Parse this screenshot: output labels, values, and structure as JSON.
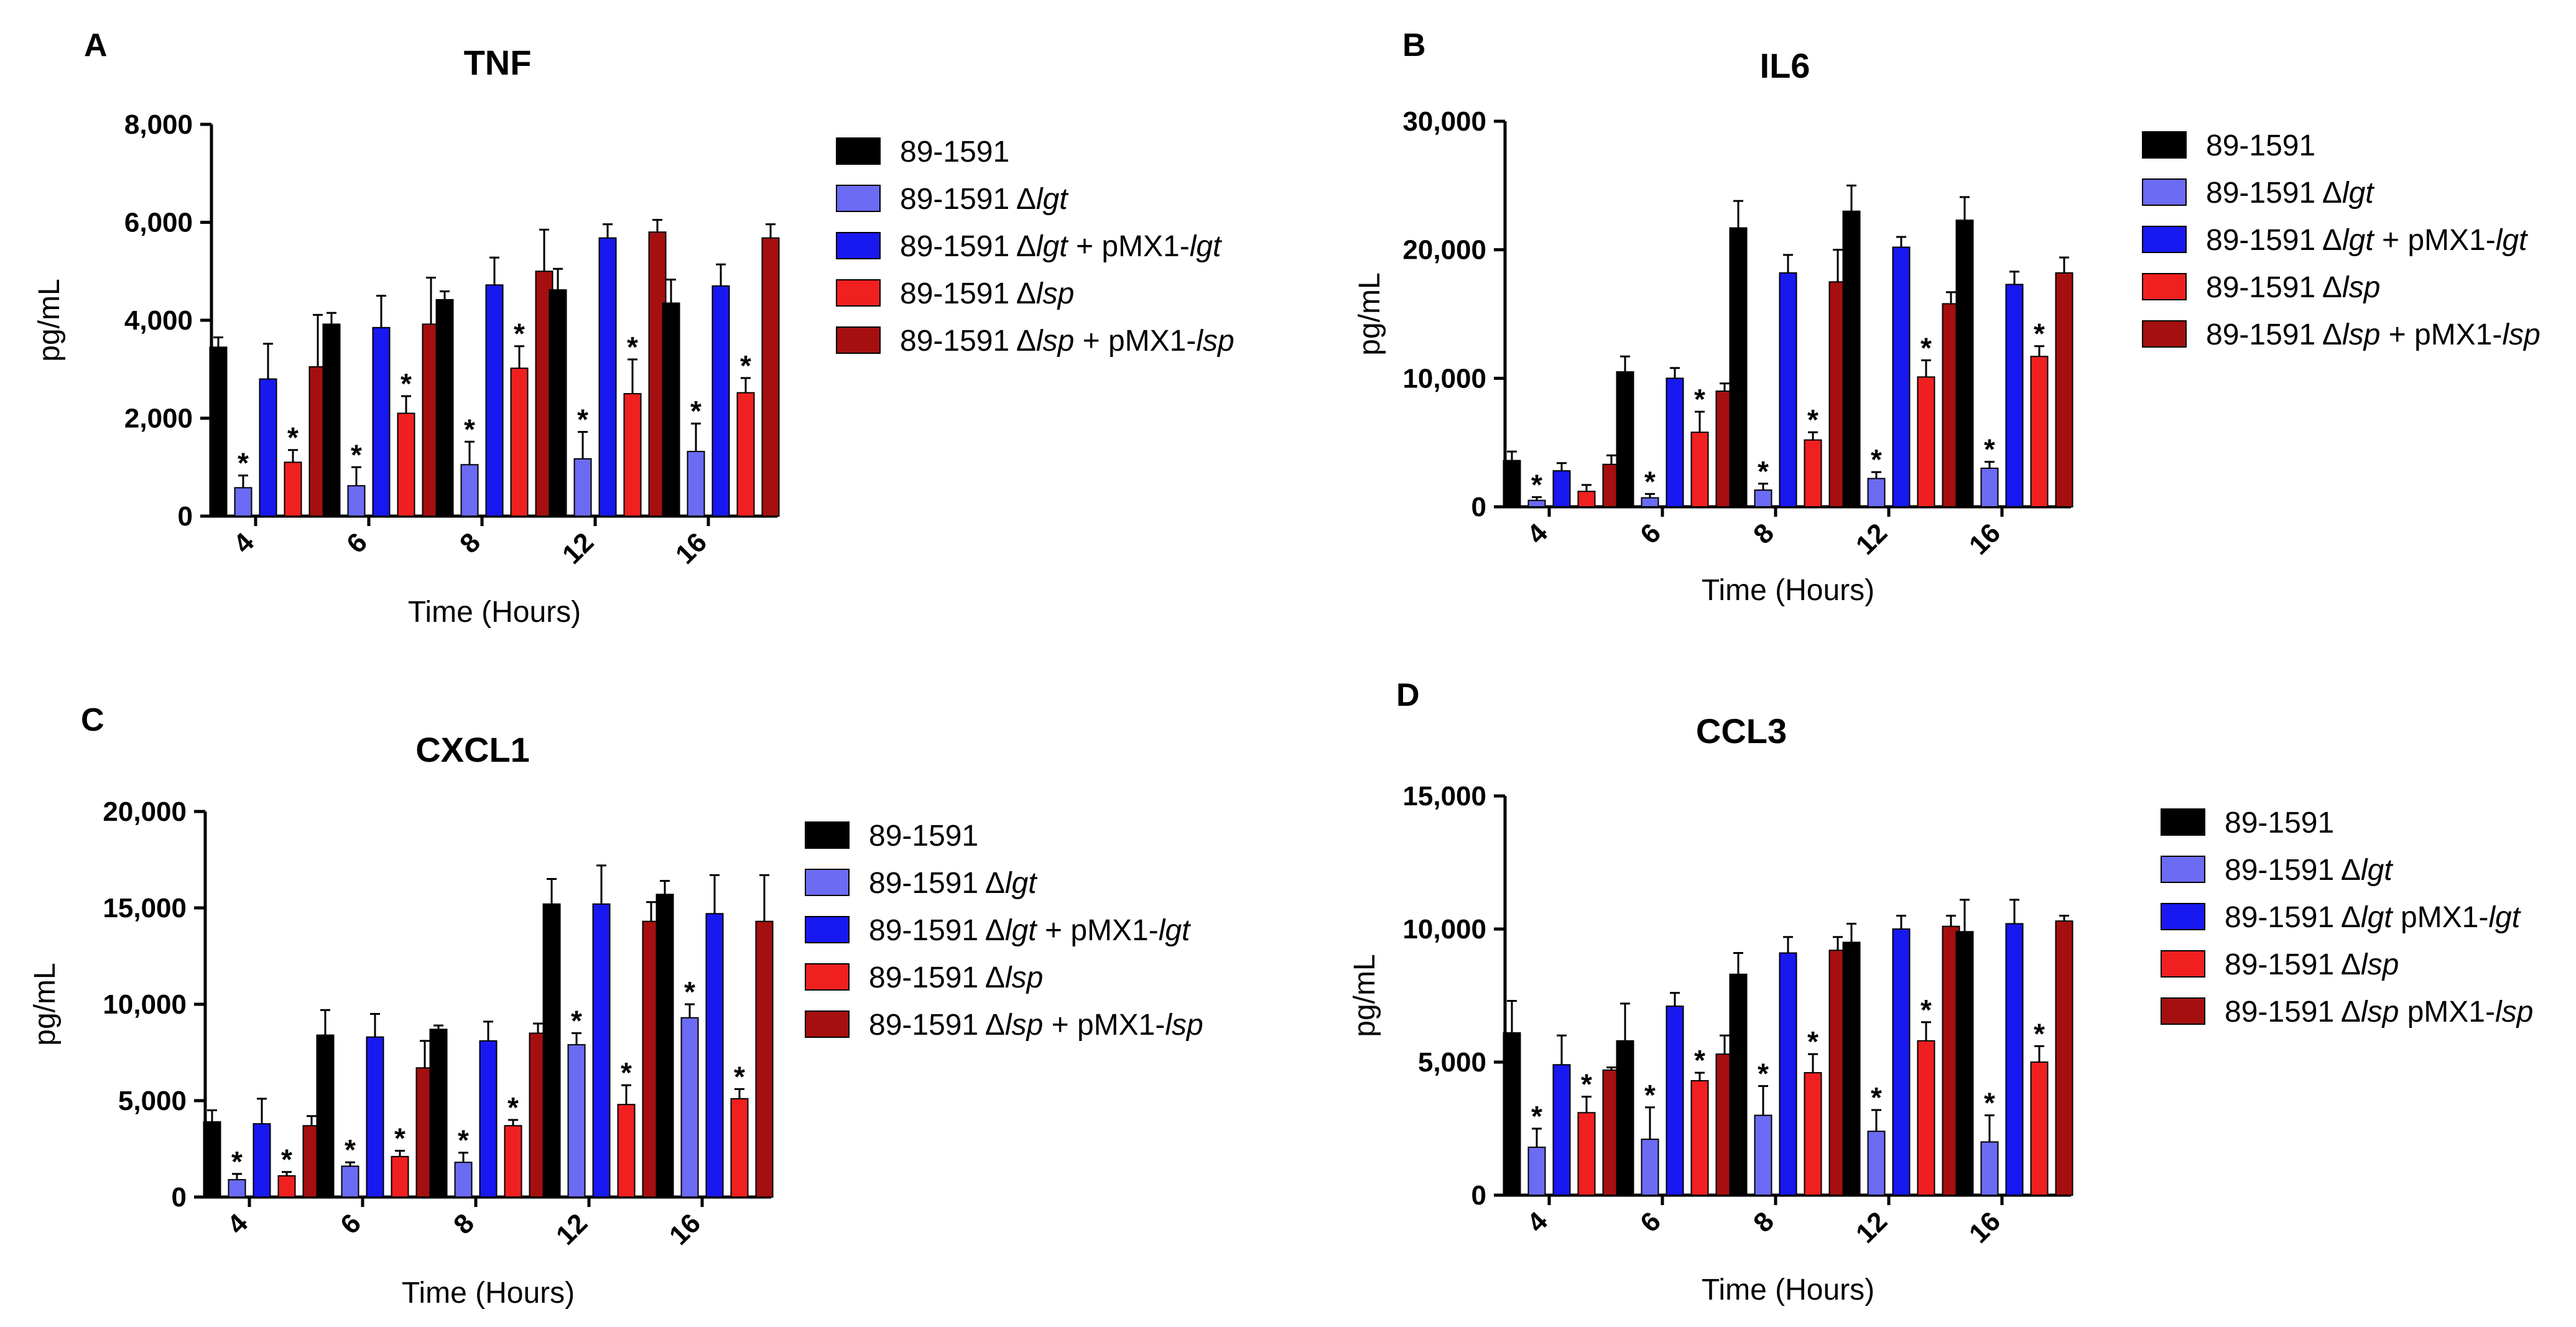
{
  "chart_data": [
    {
      "panel": "A",
      "type": "bar",
      "title": "TNF",
      "xlabel": "Time (Hours)",
      "ylabel": "pg/mL",
      "ylim": [
        0,
        8000
      ],
      "yticks": [
        "0",
        "2,000",
        "4,000",
        "6,000",
        "8,000"
      ],
      "yticks_values": [
        0,
        2000,
        4000,
        6000,
        8000
      ],
      "categories": [
        "4",
        "6",
        "8",
        "12",
        "16"
      ],
      "series": [
        {
          "name": "89-1591",
          "color": "#000000",
          "values": [
            3450,
            3920,
            4420,
            4620,
            4350
          ],
          "errors": [
            200,
            230,
            170,
            430,
            480
          ],
          "stars": [
            false,
            false,
            false,
            false,
            false
          ]
        },
        {
          "name": "89-1591 Δlgt",
          "color": "#6b6bf3",
          "values": [
            580,
            620,
            1050,
            1170,
            1320
          ],
          "errors": [
            250,
            380,
            470,
            550,
            570
          ],
          "stars": [
            true,
            true,
            true,
            true,
            true
          ]
        },
        {
          "name": "89-1591 Δlgt + pMX1-lgt",
          "color": "#1818f0",
          "values": [
            2800,
            3850,
            4720,
            5680,
            4700
          ],
          "errors": [
            720,
            650,
            560,
            280,
            440
          ],
          "stars": [
            false,
            false,
            false,
            false,
            false
          ]
        },
        {
          "name": "89-1591 Δlsp",
          "color": "#f02020",
          "values": [
            1100,
            2100,
            3020,
            2500,
            2520
          ],
          "errors": [
            250,
            350,
            450,
            700,
            300
          ],
          "stars": [
            true,
            true,
            true,
            true,
            true
          ]
        },
        {
          "name": "89-1591 Δlsp + pMX1-lsp",
          "color": "#a50f0f",
          "values": [
            3050,
            3920,
            5000,
            5800,
            5680
          ],
          "errors": [
            1060,
            950,
            850,
            250,
            280
          ],
          "stars": [
            false,
            false,
            false,
            false,
            false
          ]
        }
      ],
      "legend": [
        {
          "pre": "89-1591",
          "it1": "",
          "mid": "",
          "it2": ""
        },
        {
          "pre": "89-1591 Δ",
          "it1": "lgt",
          "mid": "",
          "it2": ""
        },
        {
          "pre": "89-1591 Δ",
          "it1": "lgt",
          "mid": " + pMX1-",
          "it2": "lgt"
        },
        {
          "pre": "89-1591 Δ",
          "it1": "lsp",
          "mid": "",
          "it2": ""
        },
        {
          "pre": "89-1591 Δ",
          "it1": "lsp",
          "mid": " + pMX1-",
          "it2": "lsp"
        }
      ]
    },
    {
      "panel": "B",
      "type": "bar",
      "title": "IL6",
      "xlabel": "Time (Hours)",
      "ylabel": "pg/mL",
      "ylim": [
        0,
        30000
      ],
      "yticks": [
        "0",
        "10,000",
        "20,000",
        "30,000"
      ],
      "yticks_values": [
        0,
        10000,
        20000,
        30000
      ],
      "categories": [
        "4",
        "6",
        "8",
        "12",
        "16"
      ],
      "series": [
        {
          "name": "89-1591",
          "color": "#000000",
          "values": [
            3600,
            10500,
            21700,
            23000,
            22300
          ],
          "errors": [
            700,
            1200,
            2100,
            2000,
            1800
          ],
          "stars": [
            false,
            false,
            false,
            false,
            false
          ]
        },
        {
          "name": "89-1591 Δlgt",
          "color": "#6b6bf3",
          "values": [
            500,
            700,
            1300,
            2200,
            3000
          ],
          "errors": [
            250,
            300,
            500,
            500,
            500
          ],
          "stars": [
            true,
            true,
            true,
            true,
            true
          ]
        },
        {
          "name": "89-1591 Δlgt + pMX1-lgt",
          "color": "#1818f0",
          "values": [
            2800,
            10000,
            18200,
            20200,
            17300
          ],
          "errors": [
            600,
            800,
            1400,
            800,
            1000
          ],
          "stars": [
            false,
            false,
            false,
            false,
            false
          ]
        },
        {
          "name": "89-1591 Δlsp",
          "color": "#f02020",
          "values": [
            1200,
            5800,
            5200,
            10100,
            11700
          ],
          "errors": [
            500,
            1600,
            600,
            1300,
            800
          ],
          "stars": [
            false,
            true,
            true,
            true,
            true
          ]
        },
        {
          "name": "89-1591 Δlsp + pMX1-lsp",
          "color": "#a50f0f",
          "values": [
            3300,
            9000,
            17500,
            15800,
            18200
          ],
          "errors": [
            700,
            600,
            2500,
            900,
            1200
          ],
          "stars": [
            false,
            false,
            false,
            false,
            false
          ]
        }
      ],
      "legend": [
        {
          "pre": "89-1591",
          "it1": "",
          "mid": "",
          "it2": ""
        },
        {
          "pre": "89-1591 Δ",
          "it1": "lgt",
          "mid": "",
          "it2": ""
        },
        {
          "pre": "89-1591 Δ",
          "it1": "lgt",
          "mid": " + pMX1-",
          "it2": "lgt"
        },
        {
          "pre": "89-1591 Δ",
          "it1": "lsp",
          "mid": "",
          "it2": ""
        },
        {
          "pre": "89-1591 Δ",
          "it1": "lsp",
          "mid": " + pMX1-",
          "it2": "lsp"
        }
      ]
    },
    {
      "panel": "C",
      "type": "bar",
      "title": "CXCL1",
      "xlabel": "Time (Hours)",
      "ylabel": "pg/mL",
      "ylim": [
        0,
        20000
      ],
      "yticks": [
        "0",
        "5,000",
        "10,000",
        "15,000",
        "20,000"
      ],
      "yticks_values": [
        0,
        5000,
        10000,
        15000,
        20000
      ],
      "categories": [
        "4",
        "6",
        "8",
        "12",
        "16"
      ],
      "series": [
        {
          "name": "89-1591",
          "color": "#000000",
          "values": [
            3900,
            8400,
            8700,
            15200,
            15700
          ],
          "errors": [
            600,
            1300,
            200,
            1300,
            700
          ],
          "stars": [
            false,
            false,
            false,
            false,
            false
          ]
        },
        {
          "name": "89-1591 Δlgt",
          "color": "#6b6bf3",
          "values": [
            900,
            1600,
            1800,
            7900,
            9300
          ],
          "errors": [
            300,
            200,
            500,
            600,
            700
          ],
          "stars": [
            true,
            true,
            true,
            true,
            true
          ]
        },
        {
          "name": "89-1591 Δlgt + pMX1-lgt",
          "color": "#1818f0",
          "values": [
            3800,
            8300,
            8100,
            15200,
            14700
          ],
          "errors": [
            1300,
            1200,
            1000,
            2000,
            2000
          ],
          "stars": [
            false,
            false,
            false,
            false,
            false
          ]
        },
        {
          "name": "89-1591 Δlsp",
          "color": "#f02020",
          "values": [
            1100,
            2100,
            3700,
            4800,
            5100
          ],
          "errors": [
            200,
            300,
            300,
            1000,
            500
          ],
          "stars": [
            true,
            true,
            true,
            true,
            true
          ]
        },
        {
          "name": "89-1591 Δlsp + pMX1-lsp",
          "color": "#a50f0f",
          "values": [
            3700,
            6700,
            8500,
            14300,
            14300
          ],
          "errors": [
            500,
            1400,
            500,
            1000,
            2400
          ],
          "stars": [
            false,
            false,
            false,
            false,
            false
          ]
        }
      ],
      "legend": [
        {
          "pre": "89-1591",
          "it1": "",
          "mid": "",
          "it2": ""
        },
        {
          "pre": "89-1591 Δ",
          "it1": "lgt",
          "mid": "",
          "it2": ""
        },
        {
          "pre": "89-1591 Δ",
          "it1": "lgt",
          "mid": " + pMX1-",
          "it2": "lgt"
        },
        {
          "pre": "89-1591 Δ",
          "it1": "lsp",
          "mid": "",
          "it2": ""
        },
        {
          "pre": "89-1591 Δ",
          "it1": "lsp",
          "mid": " + pMX1-",
          "it2": "lsp"
        }
      ]
    },
    {
      "panel": "D",
      "type": "bar",
      "title": "CCL3",
      "xlabel": "Time (Hours)",
      "ylabel": "pg/mL",
      "ylim": [
        0,
        15000
      ],
      "yticks": [
        "0",
        "5,000",
        "10,000",
        "15,000"
      ],
      "yticks_values": [
        0,
        5000,
        10000,
        15000
      ],
      "categories": [
        "4",
        "6",
        "8",
        "12",
        "16"
      ],
      "series": [
        {
          "name": "89-1591",
          "color": "#000000",
          "values": [
            6100,
            5800,
            8300,
            9500,
            9900
          ],
          "errors": [
            1200,
            1400,
            800,
            700,
            1200
          ],
          "stars": [
            false,
            false,
            false,
            false,
            false
          ]
        },
        {
          "name": "89-1591 Δlgt",
          "color": "#6b6bf3",
          "values": [
            1800,
            2100,
            3000,
            2400,
            2000
          ],
          "errors": [
            700,
            1200,
            1100,
            800,
            1000
          ],
          "stars": [
            true,
            true,
            true,
            true,
            true
          ]
        },
        {
          "name": "89-1591 Δlgt pMX1-lgt",
          "color": "#1818f0",
          "values": [
            4900,
            7100,
            9100,
            10000,
            10200
          ],
          "errors": [
            1100,
            500,
            600,
            500,
            900
          ],
          "stars": [
            false,
            false,
            false,
            false,
            false
          ]
        },
        {
          "name": "89-1591 Δlsp",
          "color": "#f02020",
          "values": [
            3100,
            4300,
            4600,
            5800,
            5000
          ],
          "errors": [
            600,
            300,
            700,
            700,
            600
          ],
          "stars": [
            true,
            true,
            true,
            true,
            true
          ]
        },
        {
          "name": "89-1591 Δlsp pMX1-lsp",
          "color": "#a50f0f",
          "values": [
            4700,
            5300,
            9200,
            10100,
            10300
          ],
          "errors": [
            100,
            700,
            500,
            400,
            200
          ],
          "stars": [
            false,
            false,
            false,
            false,
            false
          ]
        }
      ],
      "legend": [
        {
          "pre": "89-1591",
          "it1": "",
          "mid": "",
          "it2": ""
        },
        {
          "pre": "89-1591 Δ",
          "it1": "lgt",
          "mid": "",
          "it2": ""
        },
        {
          "pre": "89-1591 Δ",
          "it1": "lgt",
          "mid": " pMX1-",
          "it2": "lgt"
        },
        {
          "pre": "89-1591 Δ",
          "it1": "lsp",
          "mid": "",
          "it2": ""
        },
        {
          "pre": "89-1591 Δ",
          "it1": "lsp",
          "mid": " pMX1-",
          "it2": "lsp"
        }
      ]
    }
  ],
  "star_symbol": "*"
}
